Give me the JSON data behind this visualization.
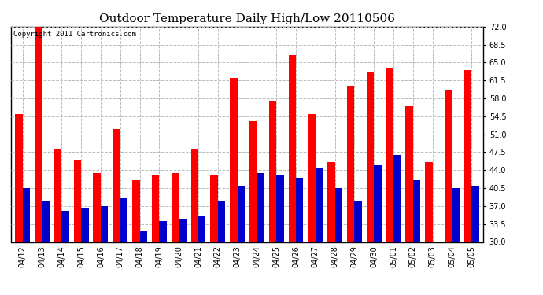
{
  "title": "Outdoor Temperature Daily High/Low 20110506",
  "copyright_text": "Copyright 2011 Cartronics.com",
  "categories": [
    "04/12",
    "04/13",
    "04/14",
    "04/15",
    "04/16",
    "04/17",
    "04/18",
    "04/19",
    "04/20",
    "04/21",
    "04/22",
    "04/23",
    "04/24",
    "04/25",
    "04/26",
    "04/27",
    "04/28",
    "04/29",
    "04/30",
    "05/01",
    "05/02",
    "05/03",
    "05/04",
    "05/05"
  ],
  "high_values": [
    55.0,
    72.5,
    48.0,
    46.0,
    43.5,
    52.0,
    42.0,
    43.0,
    43.5,
    48.0,
    43.0,
    62.0,
    53.5,
    57.5,
    66.5,
    55.0,
    45.5,
    60.5,
    63.0,
    64.0,
    56.5,
    45.5,
    59.5,
    63.5
  ],
  "low_values": [
    40.5,
    38.0,
    36.0,
    36.5,
    37.0,
    38.5,
    32.0,
    34.0,
    34.5,
    35.0,
    38.0,
    41.0,
    43.5,
    43.0,
    42.5,
    44.5,
    40.5,
    38.0,
    45.0,
    47.0,
    42.0,
    30.0,
    40.5,
    41.0
  ],
  "high_color": "#ff0000",
  "low_color": "#0000cc",
  "background_color": "#ffffff",
  "grid_color": "#bbbbbb",
  "ylim_min": 30.0,
  "ylim_max": 72.0,
  "yticks": [
    30.0,
    33.5,
    37.0,
    40.5,
    44.0,
    47.5,
    51.0,
    54.5,
    58.0,
    61.5,
    65.0,
    68.5,
    72.0
  ],
  "bar_width": 0.38,
  "title_fontsize": 11,
  "tick_fontsize": 7,
  "copyright_fontsize": 6.5
}
